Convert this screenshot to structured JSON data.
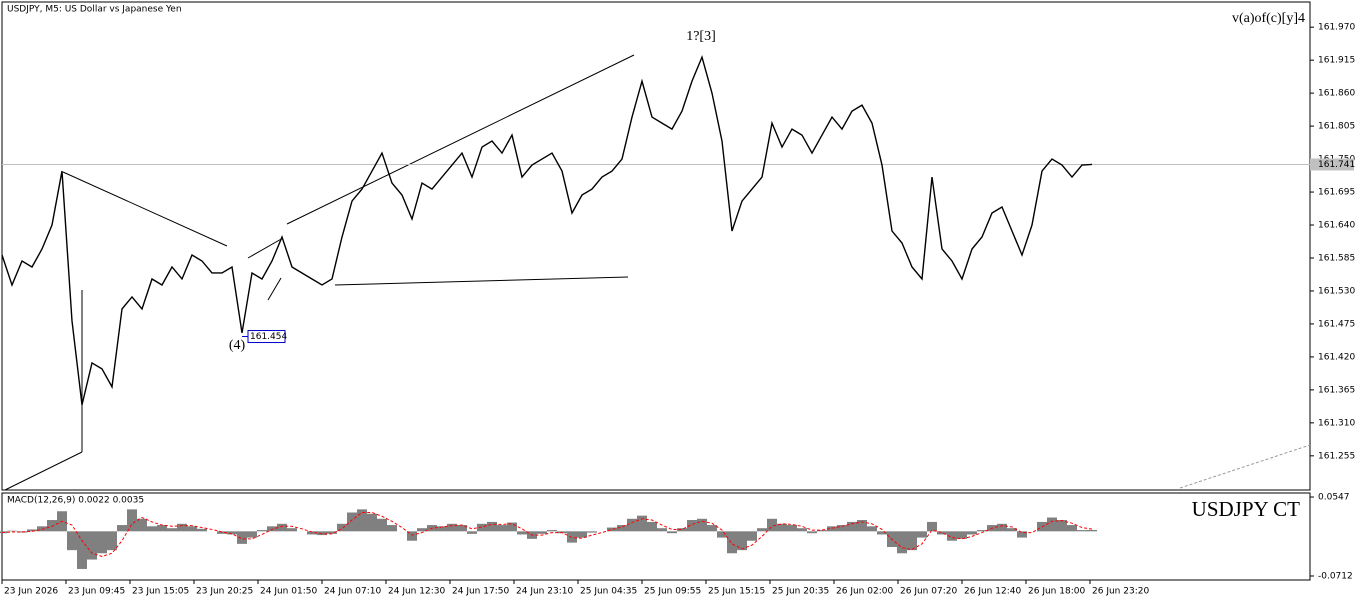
{
  "chart_data": [
    {
      "type": "line",
      "title": "USDJPY, M5:  US Dollar vs Japanese Yen",
      "annotations": [
        "v(a)of(c)[y]4",
        "1?[3]",
        "(4)"
      ],
      "marked_low": 161.454,
      "last_price": 161.741,
      "color": "#000000",
      "xlim": [
        0,
        130.8
      ],
      "xticks": [
        {
          "value": 0,
          "label": "23 Jun 2026"
        },
        {
          "value": 6.4,
          "label": "23 Jun 09:45"
        },
        {
          "value": 12.8,
          "label": "23 Jun 15:05"
        },
        {
          "value": 19.2,
          "label": "23 Jun 20:25"
        },
        {
          "value": 25.6,
          "label": "24 Jun 01:50"
        },
        {
          "value": 32,
          "label": "24 Jun 07:10"
        },
        {
          "value": 38.4,
          "label": "24 Jun 12:30"
        },
        {
          "value": 44.8,
          "label": "24 Jun 17:50"
        },
        {
          "value": 51.2,
          "label": "24 Jun 23:10"
        },
        {
          "value": 57.6,
          "label": "25 Jun 04:35"
        },
        {
          "value": 64,
          "label": "25 Jun 09:55"
        },
        {
          "value": 70.4,
          "label": "25 Jun 15:15"
        },
        {
          "value": 76.8,
          "label": "25 Jun 20:35"
        },
        {
          "value": 83.2,
          "label": "26 Jun 02:00"
        },
        {
          "value": 89.6,
          "label": "26 Jun 07:20"
        },
        {
          "value": 96,
          "label": "26 Jun 12:40"
        },
        {
          "value": 102.4,
          "label": "26 Jun 18:00"
        },
        {
          "value": 108.8,
          "label": "26 Jun 23:20"
        }
      ],
      "ylim": [
        161.198,
        162.012
      ],
      "yticks": [
        {
          "value": 161.97,
          "label": "161.970"
        },
        161.915,
        {
          "value": 161.86,
          "label": "161.860"
        },
        161.805,
        {
          "value": 161.75,
          "label": "161.750"
        },
        161.695,
        {
          "value": 161.64,
          "label": "161.640"
        },
        161.585,
        {
          "value": 161.53,
          "label": "161.530"
        },
        161.475,
        {
          "value": 161.42,
          "label": "161.420"
        },
        161.365,
        {
          "value": 161.31,
          "label": "161.310"
        },
        161.255
      ],
      "values": [
        161.59,
        161.54,
        161.58,
        161.57,
        161.6,
        161.64,
        161.73,
        161.48,
        161.34,
        161.41,
        161.4,
        161.37,
        161.5,
        161.52,
        161.5,
        161.55,
        161.54,
        161.57,
        161.55,
        161.59,
        161.58,
        161.56,
        161.56,
        161.57,
        161.46,
        161.56,
        161.55,
        161.58,
        161.62,
        161.57,
        161.56,
        161.55,
        161.54,
        161.55,
        161.62,
        161.68,
        161.7,
        161.73,
        161.76,
        161.71,
        161.69,
        161.65,
        161.71,
        161.7,
        161.72,
        161.74,
        161.76,
        161.72,
        161.77,
        161.78,
        161.76,
        161.79,
        161.72,
        161.74,
        161.75,
        161.76,
        161.73,
        161.66,
        161.69,
        161.7,
        161.72,
        161.73,
        161.75,
        161.82,
        161.88,
        161.82,
        161.81,
        161.8,
        161.83,
        161.88,
        161.92,
        161.86,
        161.78,
        161.63,
        161.68,
        161.7,
        161.72,
        161.81,
        161.77,
        161.8,
        161.79,
        161.76,
        161.79,
        161.82,
        161.8,
        161.83,
        161.84,
        161.81,
        161.74,
        161.63,
        161.61,
        161.57,
        161.55,
        161.72,
        161.6,
        161.58,
        161.55,
        161.6,
        161.62,
        161.66,
        161.67,
        161.63,
        161.59,
        161.64,
        161.73,
        161.75,
        161.74,
        161.72,
        161.74,
        161.741
      ]
    },
    {
      "type": "macd",
      "title": "MACD(12,26,9) 0.0022 0.0035",
      "annotation": "USDJPY CT",
      "ylim": [
        -0.0776,
        0.0611
      ],
      "yticks": [
        0.0547,
        -0.0712
      ],
      "histogram": {
        "color": "#808080",
        "values": [
          -0.003,
          0.001,
          -0.002,
          0.003,
          0.008,
          0.018,
          0.032,
          -0.03,
          -0.06,
          -0.045,
          -0.035,
          -0.03,
          0.01,
          0.035,
          0.02,
          0.008,
          0.01,
          0.005,
          0.012,
          0.008,
          0.004,
          0.0,
          -0.004,
          -0.005,
          -0.02,
          -0.01,
          0.002,
          0.008,
          0.012,
          0.005,
          0.0,
          -0.005,
          -0.006,
          -0.004,
          0.012,
          0.03,
          0.035,
          0.028,
          0.02,
          0.01,
          0.0,
          -0.015,
          0.005,
          0.01,
          0.008,
          0.012,
          0.01,
          -0.004,
          0.012,
          0.015,
          0.01,
          0.014,
          -0.005,
          -0.012,
          -0.004,
          0.002,
          -0.003,
          -0.018,
          -0.01,
          -0.002,
          0.0,
          0.006,
          0.01,
          0.02,
          0.025,
          0.015,
          0.005,
          -0.003,
          0.005,
          0.018,
          0.02,
          0.01,
          -0.01,
          -0.035,
          -0.03,
          -0.015,
          0.005,
          0.02,
          0.012,
          0.01,
          0.005,
          -0.003,
          0.002,
          0.008,
          0.01,
          0.015,
          0.018,
          0.008,
          -0.005,
          -0.025,
          -0.035,
          -0.03,
          -0.01,
          0.015,
          -0.005,
          -0.015,
          -0.012,
          -0.005,
          0.002,
          0.01,
          0.012,
          0.005,
          -0.01,
          0.0,
          0.015,
          0.022,
          0.018,
          0.01,
          0.002,
          0.0022
        ]
      },
      "signal": {
        "color": "#ff0000",
        "values": [
          -0.002,
          -0.001,
          -0.001,
          0.0,
          0.003,
          0.008,
          0.016,
          0.01,
          -0.015,
          -0.035,
          -0.04,
          -0.035,
          -0.015,
          0.012,
          0.022,
          0.015,
          0.01,
          0.008,
          0.009,
          0.009,
          0.006,
          0.003,
          -0.001,
          -0.004,
          -0.012,
          -0.012,
          -0.005,
          0.003,
          0.008,
          0.008,
          0.004,
          -0.001,
          -0.004,
          -0.004,
          0.004,
          0.018,
          0.03,
          0.03,
          0.024,
          0.016,
          0.006,
          -0.006,
          -0.002,
          0.005,
          0.007,
          0.009,
          0.01,
          0.004,
          0.007,
          0.011,
          0.011,
          0.012,
          0.004,
          -0.006,
          -0.006,
          -0.002,
          -0.002,
          -0.01,
          -0.011,
          -0.006,
          -0.002,
          0.003,
          0.007,
          0.014,
          0.02,
          0.018,
          0.01,
          0.003,
          0.003,
          0.011,
          0.016,
          0.013,
          0.002,
          -0.02,
          -0.028,
          -0.022,
          -0.008,
          0.008,
          0.012,
          0.011,
          0.008,
          0.002,
          0.002,
          0.005,
          0.008,
          0.012,
          0.015,
          0.012,
          0.003,
          -0.013,
          -0.026,
          -0.029,
          -0.02,
          0.002,
          -0.002,
          -0.01,
          -0.012,
          -0.008,
          -0.002,
          0.005,
          0.009,
          0.007,
          -0.002,
          -0.002,
          0.007,
          0.016,
          0.017,
          0.013,
          0.006,
          0.0035
        ]
      }
    }
  ]
}
